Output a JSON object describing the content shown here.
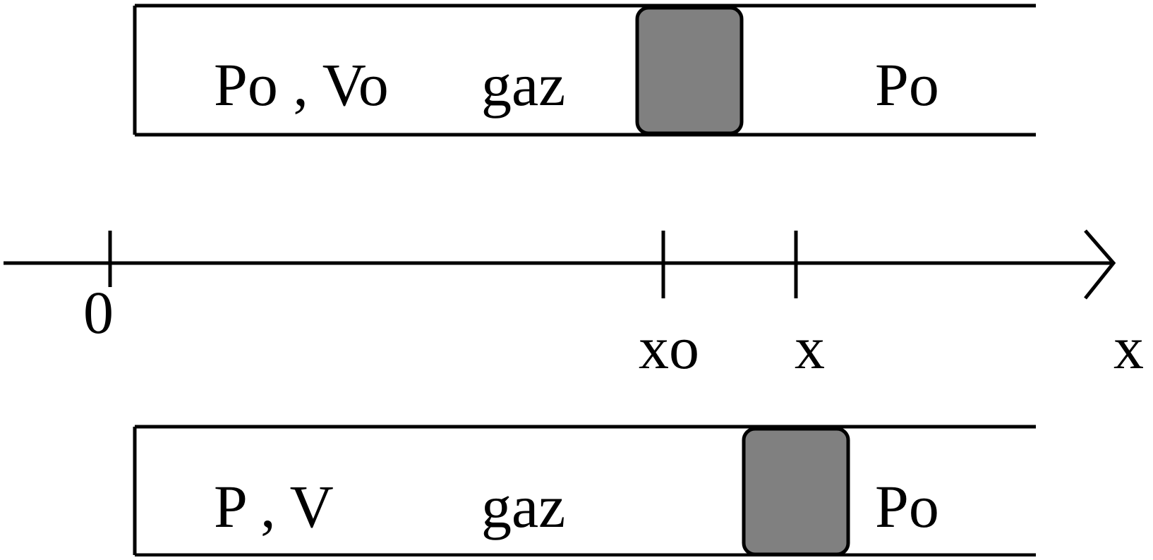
{
  "colors": {
    "stroke": "#000000",
    "piston": "#808080",
    "background": "#ffffff"
  },
  "top_cylinder": {
    "gas_state": "Po , Vo",
    "gas_label": "gaz",
    "outside_pressure": "Po"
  },
  "axis": {
    "origin_label": "0",
    "x0_label": "xo",
    "x_label": "x",
    "axis_name": "x"
  },
  "bottom_cylinder": {
    "gas_state": "P , V",
    "gas_label": "gaz",
    "outside_pressure": "Po"
  }
}
